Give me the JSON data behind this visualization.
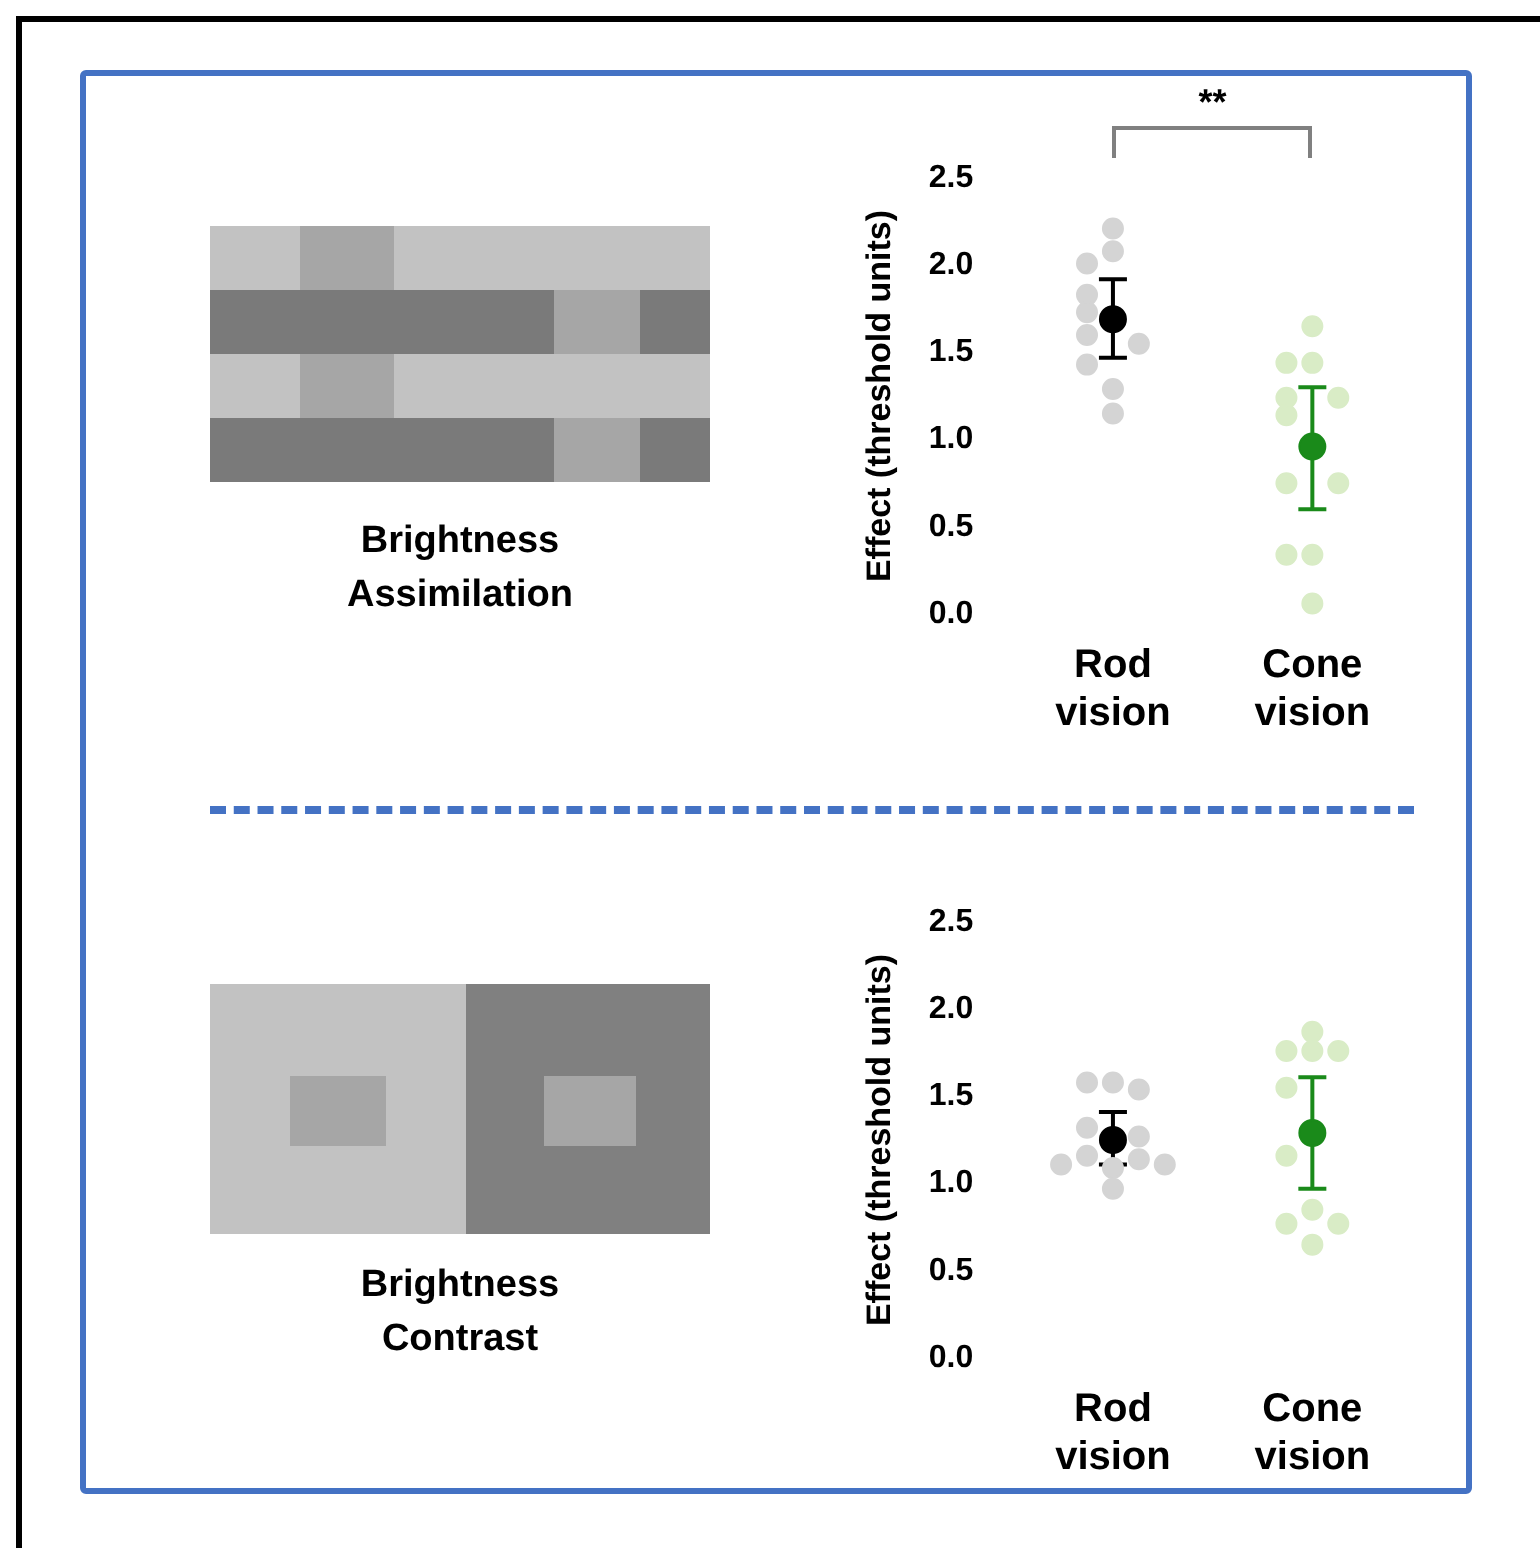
{
  "chart_data": [
    {
      "type": "other",
      "title": "Brightness Assimilation"
    },
    {
      "type": "scatter",
      "ylabel": "Effect (threshold units)",
      "categories": [
        "Rod vision",
        "Cone vision"
      ],
      "ylim": [
        0,
        2.5
      ],
      "yticks": [
        {
          "value": 0,
          "label": "0.0"
        },
        {
          "value": 0.5,
          "label": "0.5"
        },
        {
          "value": 1,
          "label": "1.0"
        },
        {
          "value": 1.5,
          "label": "1.5"
        },
        {
          "value": 2,
          "label": "2.0"
        },
        {
          "value": 2.5,
          "label": "2.5"
        }
      ],
      "grid": false,
      "legend": false,
      "marker": "circle",
      "annotations": [
        "**"
      ],
      "series": [
        {
          "color": "#d4d4d4",
          "x": [
            "Rod vision",
            "Rod vision",
            "Rod vision",
            "Rod vision",
            "Rod vision",
            "Rod vision",
            "Rod vision",
            "Rod vision",
            "Rod vision",
            "Rod vision"
          ],
          "values": [
            2.21,
            2.08,
            2.01,
            1.83,
            1.73,
            1.6,
            1.55,
            1.43,
            1.29,
            1.15
          ]
        },
        {
          "color": "#d9ecc6",
          "x": [
            "Cone vision",
            "Cone vision",
            "Cone vision",
            "Cone vision",
            "Cone vision",
            "Cone vision",
            "Cone vision",
            "Cone vision",
            "Cone vision",
            "Cone vision",
            "Cone vision"
          ],
          "values": [
            1.65,
            1.44,
            1.44,
            1.24,
            1.24,
            1.14,
            0.75,
            0.75,
            0.34,
            0.34,
            0.06
          ]
        },
        {
          "color": "#000000",
          "x": [
            "Rod vision"
          ],
          "values": [
            1.69
          ],
          "errors": [
            [
              1.47,
              1.92
            ]
          ]
        },
        {
          "color": "#1a8a1a",
          "x": [
            "Cone vision"
          ],
          "values": [
            0.96
          ],
          "errors": [
            [
              0.6,
              1.3
            ]
          ]
        }
      ]
    },
    {
      "type": "other",
      "title": "Brightness Contrast"
    },
    {
      "type": "scatter",
      "ylabel": "Effect (threshold units)",
      "categories": [
        "Rod vision",
        "Cone vision"
      ],
      "ylim": [
        0,
        2.5
      ],
      "yticks": [
        {
          "value": 0,
          "label": "0.0"
        },
        {
          "value": 0.5,
          "label": "0.5"
        },
        {
          "value": 1,
          "label": "1.0"
        },
        {
          "value": 1.5,
          "label": "1.5"
        },
        {
          "value": 2,
          "label": "2.0"
        },
        {
          "value": 2.5,
          "label": "2.5"
        }
      ],
      "grid": false,
      "legend": false,
      "marker": "circle",
      "series": [
        {
          "color": "#d4d4d4",
          "x": [
            "Rod vision",
            "Rod vision",
            "Rod vision",
            "Rod vision",
            "Rod vision",
            "Rod vision",
            "Rod vision",
            "Rod vision",
            "Rod vision",
            "Rod vision",
            "Rod vision"
          ],
          "values": [
            1.58,
            1.58,
            1.54,
            1.32,
            1.27,
            1.16,
            1.14,
            1.11,
            1.11,
            1.09,
            0.97
          ]
        },
        {
          "color": "#d9ecc6",
          "x": [
            "Cone vision",
            "Cone vision",
            "Cone vision",
            "Cone vision",
            "Cone vision",
            "Cone vision",
            "Cone vision",
            "Cone vision",
            "Cone vision",
            "Cone vision"
          ],
          "values": [
            1.87,
            1.76,
            1.76,
            1.76,
            1.55,
            1.16,
            0.85,
            0.77,
            0.77,
            0.65
          ]
        },
        {
          "color": "#000000",
          "x": [
            "Rod vision"
          ],
          "values": [
            1.25
          ],
          "errors": [
            [
              1.11,
              1.41
            ]
          ]
        },
        {
          "color": "#1a8a1a",
          "x": [
            "Cone vision"
          ],
          "values": [
            1.29
          ],
          "errors": [
            [
              0.97,
              1.61
            ]
          ]
        }
      ]
    }
  ]
}
